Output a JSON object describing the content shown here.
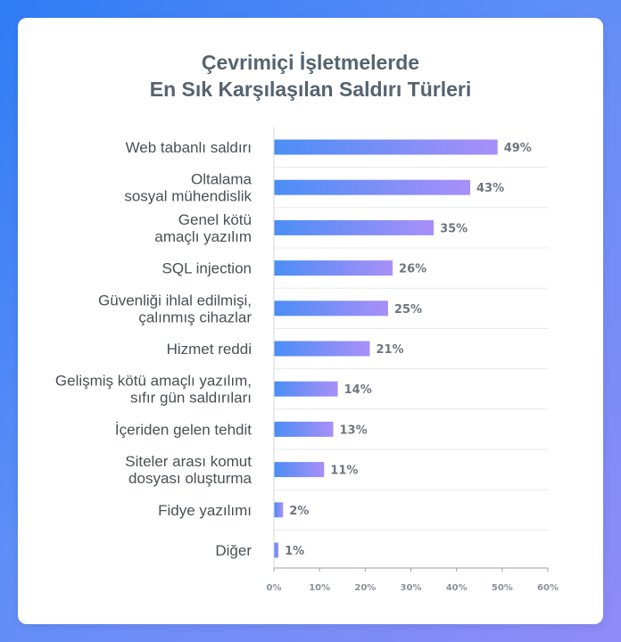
{
  "chart_data": {
    "type": "bar",
    "orientation": "horizontal",
    "title_lines": [
      "Çevrimiçi İşletmelerde",
      "En Sık Karşılaşılan Saldırı Türleri"
    ],
    "categories": [
      [
        "Web tabanlı saldırı"
      ],
      [
        "Oltalama",
        "sosyal mühendislik"
      ],
      [
        "Genel kötü",
        "amaçlı yazılım"
      ],
      [
        "SQL injection"
      ],
      [
        "Güvenliği ihlal edilmişi,",
        "çalınmış cihazlar"
      ],
      [
        "Hizmet reddi"
      ],
      [
        "Gelişmiş kötü amaçlı yazılım,",
        "sıfır gün saldırıları"
      ],
      [
        "İçeriden gelen tehdit"
      ],
      [
        "Siteler arası komut",
        "dosyası oluşturma"
      ],
      [
        "Fidye yazılımı"
      ],
      [
        "Diğer"
      ]
    ],
    "values": [
      49,
      43,
      35,
      26,
      25,
      21,
      14,
      13,
      11,
      2,
      1
    ],
    "value_labels": [
      "49%",
      "43%",
      "35%",
      "26%",
      "25%",
      "21%",
      "14%",
      "13%",
      "11%",
      "2%",
      "1%"
    ],
    "xlim": [
      0,
      60
    ],
    "xticks": [
      0,
      10,
      20,
      30,
      40,
      50,
      60
    ],
    "xtick_labels": [
      "0%",
      "10%",
      "20%",
      "30%",
      "40%",
      "50%",
      "60%"
    ],
    "grid": "horizontal separators",
    "colors": {
      "bar_start": "#4a8ef5",
      "bar_end": "#a98ff8",
      "label_text": "#4a4f57",
      "value_text": "#6f7580",
      "title_text": "#566370",
      "separator": "#e6e8ec"
    }
  }
}
